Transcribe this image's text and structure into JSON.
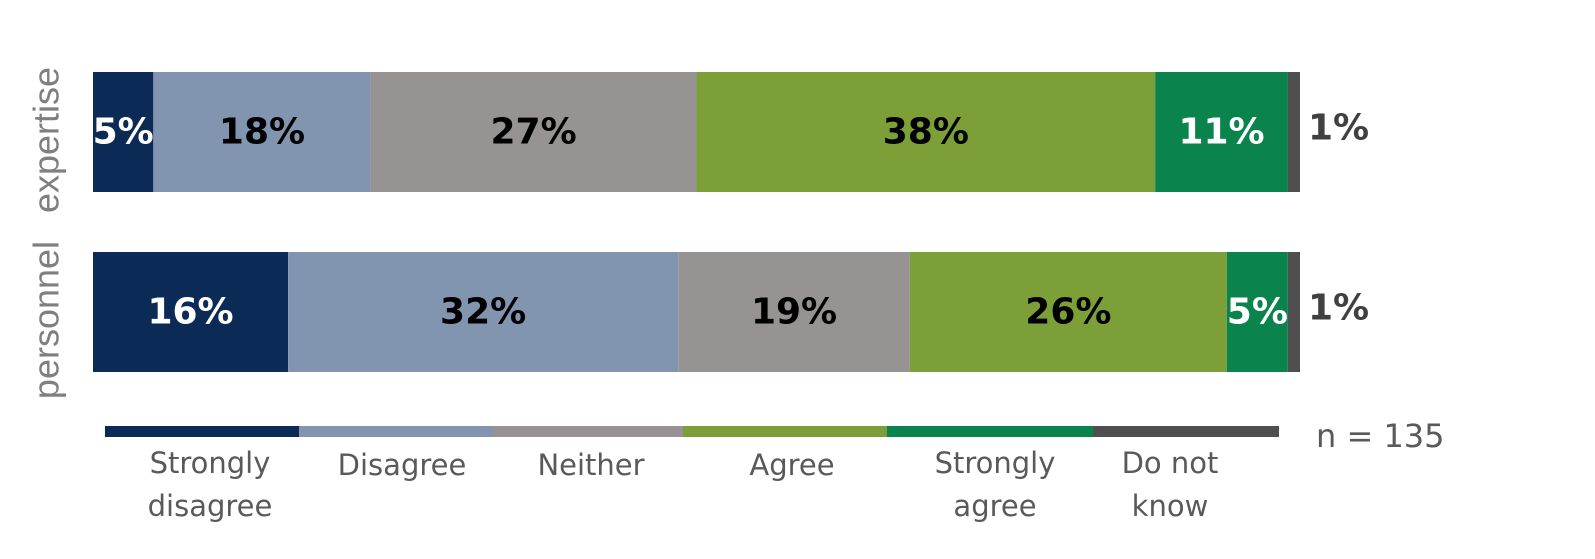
{
  "chart_data": {
    "type": "bar",
    "orientation": "horizontal",
    "stacked": true,
    "percent": true,
    "categories": [
      "expertise",
      "personnel"
    ],
    "series": [
      {
        "name": "Strongly disagree",
        "color": "#0b2a55",
        "values": [
          5,
          16
        ],
        "labels": [
          "5%",
          "16%"
        ],
        "label_color": "#ffffff"
      },
      {
        "name": "Disagree",
        "color": "#8195b0",
        "values": [
          18,
          32
        ],
        "labels": [
          "18%",
          "32%"
        ],
        "label_color": "#000000"
      },
      {
        "name": "Neither",
        "color": "#979393",
        "values": [
          27,
          19
        ],
        "labels": [
          "27%",
          "19%"
        ],
        "label_color": "#000000"
      },
      {
        "name": "Agree",
        "color": "#7c9f38",
        "values": [
          38,
          26
        ],
        "labels": [
          "38%",
          "26%"
        ],
        "label_color": "#000000"
      },
      {
        "name": "Strongly agree",
        "color": "#0b834c",
        "values": [
          11,
          5
        ],
        "labels": [
          "11%",
          "5%"
        ],
        "label_color": "#ffffff"
      },
      {
        "name": "Do not know",
        "color": "#4f4f4f",
        "values": [
          1,
          1
        ],
        "labels": [
          "1%",
          "1%"
        ],
        "label_position": "outside"
      }
    ],
    "legend": {
      "placement": "bottom",
      "entries": [
        [
          "Strongly",
          "disagree"
        ],
        [
          "Disagree"
        ],
        [
          "Neither"
        ],
        [
          "Agree"
        ],
        [
          "Strongly",
          "agree"
        ],
        [
          "Do not",
          "know"
        ]
      ]
    },
    "note": "n = 135",
    "title": "",
    "xlabel": "",
    "ylabel": "",
    "grid": false
  }
}
